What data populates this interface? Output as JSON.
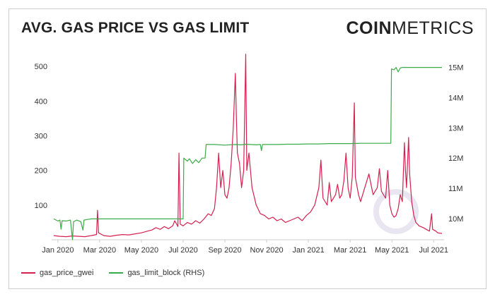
{
  "header": {
    "title": "AVG. GAS PRICE VS GAS LIMIT",
    "logo_bold": "COIN",
    "logo_light": "METRICS"
  },
  "colors": {
    "gas_price": "#d6204f",
    "gas_limit": "#3aab49",
    "watermark": "#e9e6f2"
  },
  "chart_data": {
    "type": "line",
    "title": "AVG. GAS PRICE VS GAS LIMIT",
    "x_unit": "months since Jan 2020",
    "x_ticks": [
      {
        "label": "Jan 2020",
        "x": 0
      },
      {
        "label": "Mar 2020",
        "x": 2
      },
      {
        "label": "May 2020",
        "x": 4
      },
      {
        "label": "Jul 2020",
        "x": 6
      },
      {
        "label": "Sep 2020",
        "x": 8
      },
      {
        "label": "Nov 2020",
        "x": 10
      },
      {
        "label": "Jan 2021",
        "x": 12
      },
      {
        "label": "Mar 2021",
        "x": 14
      },
      {
        "label": "May 2021",
        "x": 16
      },
      {
        "label": "Jul 2021",
        "x": 18
      }
    ],
    "xlim": [
      -0.3,
      18.5
    ],
    "y_left": {
      "ticks": [
        100,
        200,
        300,
        400,
        500
      ],
      "labels": [
        "100",
        "200",
        "300",
        "400",
        "500"
      ],
      "ylim": [
        0,
        545
      ]
    },
    "y_right": {
      "ticks": [
        10,
        11,
        12,
        13,
        14,
        15
      ],
      "labels": [
        "10M",
        "11M",
        "12M",
        "13M",
        "14M",
        "15M"
      ],
      "ylim": [
        9.3,
        15.55
      ],
      "unit": "million"
    },
    "series": [
      {
        "name": "gas_price_gwei",
        "axis": "left",
        "points": [
          [
            -0.2,
            12
          ],
          [
            0.1,
            10
          ],
          [
            0.4,
            9
          ],
          [
            0.7,
            11
          ],
          [
            1.0,
            10
          ],
          [
            1.3,
            9
          ],
          [
            1.6,
            12
          ],
          [
            1.85,
            15
          ],
          [
            1.9,
            85
          ],
          [
            1.95,
            20
          ],
          [
            2.2,
            12
          ],
          [
            2.5,
            10
          ],
          [
            2.8,
            13
          ],
          [
            3.1,
            15
          ],
          [
            3.4,
            14
          ],
          [
            3.7,
            17
          ],
          [
            4.0,
            20
          ],
          [
            4.3,
            25
          ],
          [
            4.5,
            28
          ],
          [
            4.7,
            35
          ],
          [
            4.9,
            30
          ],
          [
            5.1,
            38
          ],
          [
            5.3,
            32
          ],
          [
            5.5,
            40
          ],
          [
            5.6,
            55
          ],
          [
            5.75,
            38
          ],
          [
            5.8,
            250
          ],
          [
            5.86,
            45
          ],
          [
            6.0,
            40
          ],
          [
            6.2,
            50
          ],
          [
            6.4,
            45
          ],
          [
            6.6,
            55
          ],
          [
            6.8,
            48
          ],
          [
            7.0,
            60
          ],
          [
            7.2,
            75
          ],
          [
            7.35,
            70
          ],
          [
            7.5,
            90
          ],
          [
            7.6,
            150
          ],
          [
            7.7,
            250
          ],
          [
            7.8,
            150
          ],
          [
            7.9,
            200
          ],
          [
            8.0,
            130
          ],
          [
            8.1,
            120
          ],
          [
            8.2,
            150
          ],
          [
            8.3,
            220
          ],
          [
            8.4,
            320
          ],
          [
            8.5,
            480
          ],
          [
            8.55,
            350
          ],
          [
            8.6,
            250
          ],
          [
            8.7,
            220
          ],
          [
            8.8,
            150
          ],
          [
            8.9,
            200
          ],
          [
            9.0,
            535
          ],
          [
            9.05,
            200
          ],
          [
            9.15,
            250
          ],
          [
            9.3,
            150
          ],
          [
            9.5,
            100
          ],
          [
            9.7,
            75
          ],
          [
            9.9,
            70
          ],
          [
            10.1,
            60
          ],
          [
            10.3,
            65
          ],
          [
            10.5,
            55
          ],
          [
            10.7,
            60
          ],
          [
            10.9,
            50
          ],
          [
            11.1,
            55
          ],
          [
            11.3,
            60
          ],
          [
            11.5,
            65
          ],
          [
            11.7,
            55
          ],
          [
            11.9,
            70
          ],
          [
            12.1,
            80
          ],
          [
            12.3,
            100
          ],
          [
            12.5,
            150
          ],
          [
            12.6,
            230
          ],
          [
            12.7,
            120
          ],
          [
            12.9,
            100
          ],
          [
            13.0,
            165
          ],
          [
            13.1,
            110
          ],
          [
            13.3,
            130
          ],
          [
            13.4,
            160
          ],
          [
            13.5,
            120
          ],
          [
            13.6,
            130
          ],
          [
            13.7,
            170
          ],
          [
            13.8,
            250
          ],
          [
            13.9,
            150
          ],
          [
            14.0,
            120
          ],
          [
            14.1,
            180
          ],
          [
            14.2,
            395
          ],
          [
            14.25,
            180
          ],
          [
            14.4,
            130
          ],
          [
            14.5,
            110
          ],
          [
            14.7,
            150
          ],
          [
            14.9,
            190
          ],
          [
            15.1,
            130
          ],
          [
            15.3,
            150
          ],
          [
            15.4,
            205
          ],
          [
            15.5,
            140
          ],
          [
            15.7,
            120
          ],
          [
            15.8,
            200
          ],
          [
            15.9,
            100
          ],
          [
            16.0,
            75
          ],
          [
            16.1,
            65
          ],
          [
            16.2,
            70
          ],
          [
            16.3,
            90
          ],
          [
            16.4,
            130
          ],
          [
            16.5,
            110
          ],
          [
            16.6,
            280
          ],
          [
            16.65,
            200
          ],
          [
            16.7,
            150
          ],
          [
            16.8,
            295
          ],
          [
            16.85,
            190
          ],
          [
            16.95,
            110
          ],
          [
            17.05,
            70
          ],
          [
            17.15,
            50
          ],
          [
            17.3,
            40
          ],
          [
            17.5,
            35
          ],
          [
            17.7,
            28
          ],
          [
            17.8,
            25
          ],
          [
            17.9,
            75
          ],
          [
            17.95,
            30
          ],
          [
            18.1,
            25
          ],
          [
            18.2,
            20
          ],
          [
            18.4,
            18
          ]
        ]
      },
      {
        "name": "gas_limit_block (RHS)",
        "axis": "right",
        "points": [
          [
            -0.2,
            9.99
          ],
          [
            0.0,
            9.92
          ],
          [
            0.1,
            9.95
          ],
          [
            0.15,
            9.65
          ],
          [
            0.2,
            9.93
          ],
          [
            0.4,
            9.92
          ],
          [
            0.6,
            9.95
          ],
          [
            0.7,
            9.3
          ],
          [
            0.75,
            9.9
          ],
          [
            0.9,
            9.95
          ],
          [
            1.1,
            9.9
          ],
          [
            1.2,
            9.62
          ],
          [
            1.25,
            9.95
          ],
          [
            1.4,
            9.97
          ],
          [
            1.6,
            9.99
          ],
          [
            1.9,
            9.99
          ],
          [
            2.5,
            9.99
          ],
          [
            3.0,
            9.99
          ],
          [
            3.5,
            9.99
          ],
          [
            4.0,
            9.99
          ],
          [
            4.5,
            9.99
          ],
          [
            5.0,
            9.99
          ],
          [
            5.5,
            9.99
          ],
          [
            6.0,
            9.99
          ],
          [
            6.03,
            12.0
          ],
          [
            6.2,
            11.9
          ],
          [
            6.3,
            11.98
          ],
          [
            6.45,
            11.82
          ],
          [
            6.6,
            11.95
          ],
          [
            6.75,
            11.85
          ],
          [
            6.9,
            12.0
          ],
          [
            7.05,
            12.0
          ],
          [
            7.1,
            12.45
          ],
          [
            7.5,
            12.45
          ],
          [
            8.0,
            12.43
          ],
          [
            8.5,
            12.45
          ],
          [
            8.8,
            12.44
          ],
          [
            9.0,
            12.46
          ],
          [
            9.5,
            12.44
          ],
          [
            9.7,
            12.45
          ],
          [
            9.75,
            12.25
          ],
          [
            9.8,
            12.45
          ],
          [
            10.5,
            12.45
          ],
          [
            11.0,
            12.46
          ],
          [
            11.5,
            12.46
          ],
          [
            12.0,
            12.47
          ],
          [
            12.5,
            12.47
          ],
          [
            13.0,
            12.48
          ],
          [
            13.5,
            12.48
          ],
          [
            14.0,
            12.48
          ],
          [
            14.5,
            12.49
          ],
          [
            15.0,
            12.49
          ],
          [
            15.5,
            12.49
          ],
          [
            15.95,
            12.49
          ],
          [
            15.98,
            14.95
          ],
          [
            16.1,
            14.92
          ],
          [
            16.2,
            15.0
          ],
          [
            16.3,
            14.85
          ],
          [
            16.4,
            14.98
          ],
          [
            16.5,
            15.0
          ],
          [
            17.0,
            15.0
          ],
          [
            17.5,
            15.0
          ],
          [
            18.0,
            15.0
          ],
          [
            18.4,
            15.0
          ]
        ]
      }
    ],
    "legend": {
      "placement": "bottom-left",
      "entries": [
        "gas_price_gwei",
        "gas_limit_block (RHS)"
      ]
    }
  }
}
